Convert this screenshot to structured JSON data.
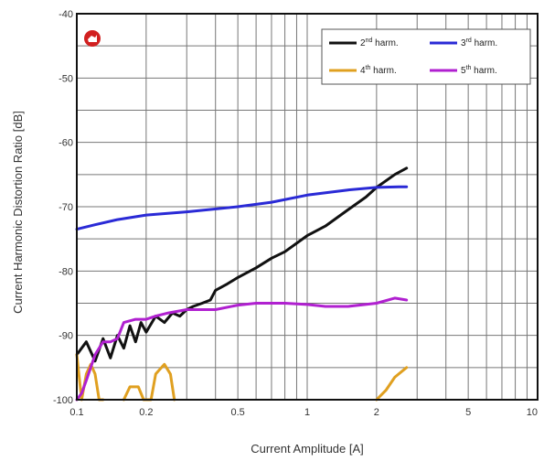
{
  "chart_data": {
    "type": "line",
    "xlabel": "Current Amplitude [A]",
    "ylabel": "Current Harmonic Distortion Ratio [dB]",
    "xscale": "log",
    "xlim": [
      0.1,
      10
    ],
    "ylim": [
      -100,
      -40
    ],
    "grid": true,
    "legend_position": "top-right",
    "x_ticks": [
      "0.1",
      "0.2",
      "0.5",
      "1",
      "2",
      "5",
      "10"
    ],
    "y_ticks": [
      "-40",
      "-50",
      "-60",
      "-70",
      "-80",
      "-90",
      "-100"
    ],
    "legend": [
      {
        "base": "2",
        "sup": "nd",
        "rest": " harm."
      },
      {
        "base": "3",
        "sup": "rd",
        "rest": " harm."
      },
      {
        "base": "4",
        "sup": "th",
        "rest": " harm."
      },
      {
        "base": "5",
        "sup": "th",
        "rest": " harm."
      }
    ],
    "series": [
      {
        "name": "2nd harm.",
        "color": "#111111",
        "points": [
          [
            0.1,
            -93
          ],
          [
            0.11,
            -91
          ],
          [
            0.12,
            -94
          ],
          [
            0.13,
            -90.5
          ],
          [
            0.14,
            -93.5
          ],
          [
            0.15,
            -90
          ],
          [
            0.16,
            -92
          ],
          [
            0.17,
            -88.5
          ],
          [
            0.18,
            -91
          ],
          [
            0.19,
            -88
          ],
          [
            0.2,
            -89.5
          ],
          [
            0.22,
            -87
          ],
          [
            0.24,
            -88
          ],
          [
            0.26,
            -86.5
          ],
          [
            0.28,
            -87
          ],
          [
            0.3,
            -86
          ],
          [
            0.32,
            -85.5
          ],
          [
            0.35,
            -85
          ],
          [
            0.38,
            -84.5
          ],
          [
            0.4,
            -83
          ],
          [
            0.45,
            -82
          ],
          [
            0.5,
            -81
          ],
          [
            0.6,
            -79.5
          ],
          [
            0.7,
            -78
          ],
          [
            0.8,
            -77
          ],
          [
            1.0,
            -74.5
          ],
          [
            1.2,
            -73
          ],
          [
            1.5,
            -70.5
          ],
          [
            1.8,
            -68.5
          ],
          [
            2.0,
            -67
          ],
          [
            2.4,
            -65
          ],
          [
            2.7,
            -64
          ]
        ]
      },
      {
        "name": "3rd harm.",
        "color": "#2a2ad6",
        "points": [
          [
            0.1,
            -73.5
          ],
          [
            0.12,
            -72.8
          ],
          [
            0.15,
            -72
          ],
          [
            0.2,
            -71.3
          ],
          [
            0.3,
            -70.8
          ],
          [
            0.5,
            -70
          ],
          [
            0.7,
            -69.3
          ],
          [
            1.0,
            -68.2
          ],
          [
            1.5,
            -67.4
          ],
          [
            2.0,
            -67.0
          ],
          [
            2.5,
            -66.9
          ],
          [
            2.7,
            -66.9
          ]
        ]
      },
      {
        "name": "4th harm.",
        "color": "#e0a020",
        "segments": [
          [
            [
              0.1,
              -93
            ],
            [
              0.105,
              -100
            ],
            [
              0.11,
              -96
            ],
            [
              0.115,
              -94.5
            ],
            [
              0.12,
              -96
            ],
            [
              0.125,
              -100
            ],
            [
              0.13,
              -100
            ]
          ],
          [
            [
              0.16,
              -100
            ],
            [
              0.17,
              -98
            ],
            [
              0.185,
              -98
            ],
            [
              0.195,
              -100
            ],
            [
              0.21,
              -100
            ],
            [
              0.22,
              -96
            ],
            [
              0.24,
              -94.5
            ],
            [
              0.255,
              -96
            ],
            [
              0.265,
              -100
            ]
          ],
          [
            [
              2.0,
              -100
            ],
            [
              2.2,
              -98.5
            ],
            [
              2.4,
              -96.5
            ],
            [
              2.7,
              -95
            ]
          ]
        ]
      },
      {
        "name": "5th harm.",
        "color": "#b020d0",
        "points": [
          [
            0.1,
            -100
          ],
          [
            0.105,
            -99
          ],
          [
            0.11,
            -97
          ],
          [
            0.12,
            -93
          ],
          [
            0.13,
            -91
          ],
          [
            0.14,
            -91
          ],
          [
            0.15,
            -90.5
          ],
          [
            0.16,
            -88
          ],
          [
            0.18,
            -87.5
          ],
          [
            0.2,
            -87.5
          ],
          [
            0.22,
            -87
          ],
          [
            0.25,
            -86.5
          ],
          [
            0.3,
            -86
          ],
          [
            0.35,
            -86
          ],
          [
            0.4,
            -86
          ],
          [
            0.5,
            -85.3
          ],
          [
            0.6,
            -85
          ],
          [
            0.8,
            -85
          ],
          [
            1.0,
            -85.2
          ],
          [
            1.2,
            -85.5
          ],
          [
            1.5,
            -85.5
          ],
          [
            2.0,
            -85
          ],
          [
            2.4,
            -84.2
          ],
          [
            2.7,
            -84.5
          ]
        ]
      }
    ]
  }
}
